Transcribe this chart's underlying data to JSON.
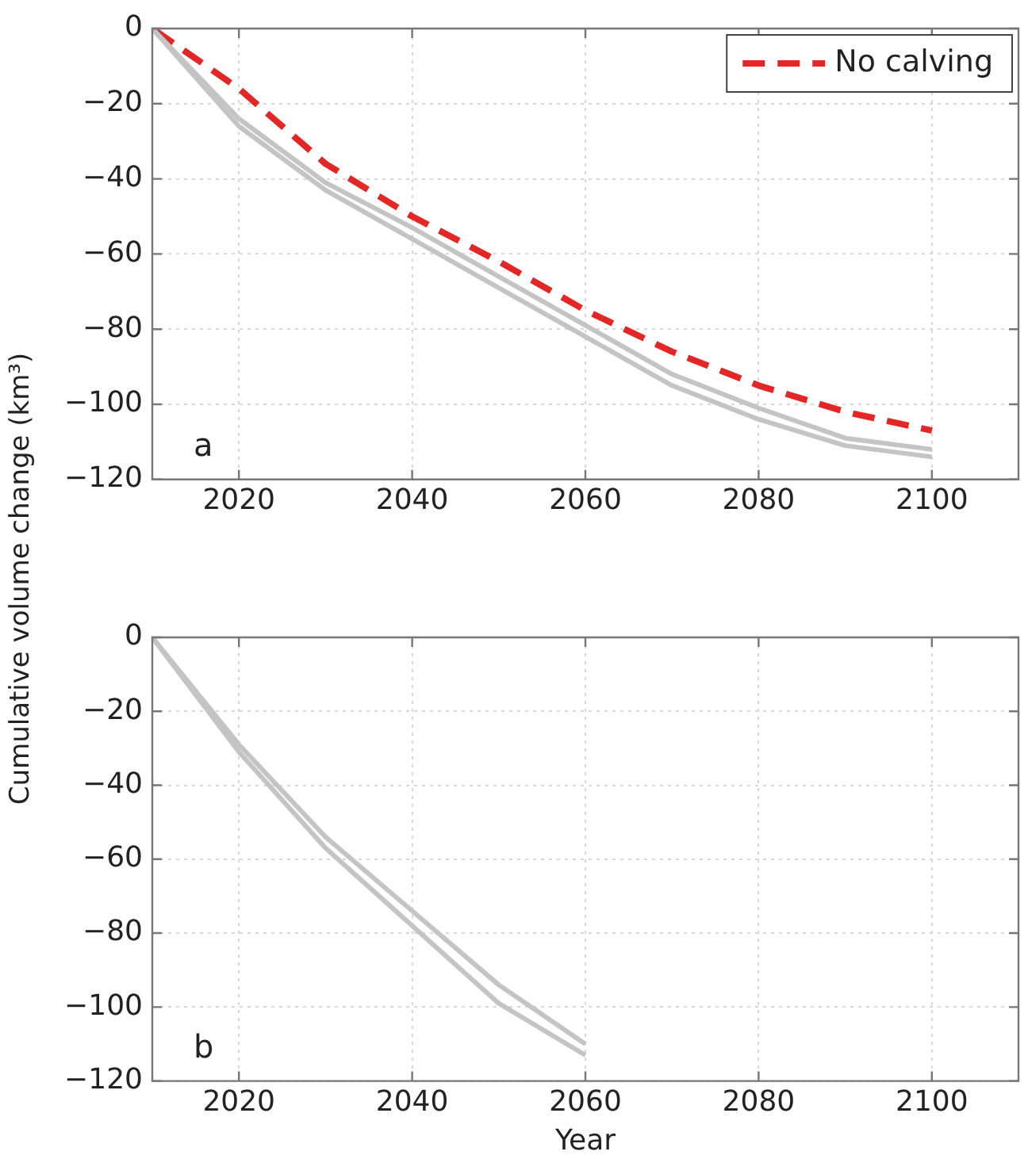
{
  "chart_data": [
    {
      "type": "line",
      "ylabel": "Cumulative volume change (km³)",
      "annotations": [
        "a"
      ],
      "x": [
        2010,
        2020,
        2030,
        2040,
        2050,
        2060,
        2070,
        2080,
        2090,
        2100
      ],
      "series": [
        {
          "color": "#c4c4c4",
          "values": [
            0,
            -24,
            -41,
            -53,
            -66,
            -79,
            -92,
            -101,
            -109,
            -112
          ]
        },
        {
          "color": "#c4c4c4",
          "values": [
            0,
            -26,
            -43,
            -56,
            -69,
            -82,
            -95,
            -104,
            -111,
            -114
          ]
        },
        {
          "name": "No calving",
          "color": "#e32626",
          "line_style": "dashed",
          "values": [
            0,
            -16,
            -36,
            -50,
            -62,
            -75,
            -86,
            -95,
            -102,
            -107
          ]
        }
      ],
      "xlim": [
        2010,
        2110
      ],
      "xticks": [
        2020,
        2040,
        2060,
        2080,
        2100
      ],
      "ylim": [
        -120,
        0
      ],
      "yticks": [
        -120,
        -100,
        -80,
        -60,
        -40,
        -20,
        0
      ],
      "grid": true,
      "legend": "top right",
      "marker": "none"
    },
    {
      "type": "line",
      "xlabel": "Year",
      "annotations": [
        "b"
      ],
      "x": [
        2010,
        2020,
        2030,
        2040,
        2050,
        2060
      ],
      "series": [
        {
          "color": "#c4c4c4",
          "values": [
            0,
            -29,
            -54,
            -74,
            -94,
            -110
          ]
        },
        {
          "color": "#c4c4c4",
          "values": [
            0,
            -31,
            -57,
            -78,
            -99,
            -113
          ]
        }
      ],
      "xlim": [
        2010,
        2110
      ],
      "xticks": [
        2020,
        2040,
        2060,
        2080,
        2100
      ],
      "ylim": [
        -120,
        0
      ],
      "yticks": [
        -120,
        -100,
        -80,
        -60,
        -40,
        -20,
        0
      ],
      "grid": true,
      "marker": "none"
    }
  ]
}
